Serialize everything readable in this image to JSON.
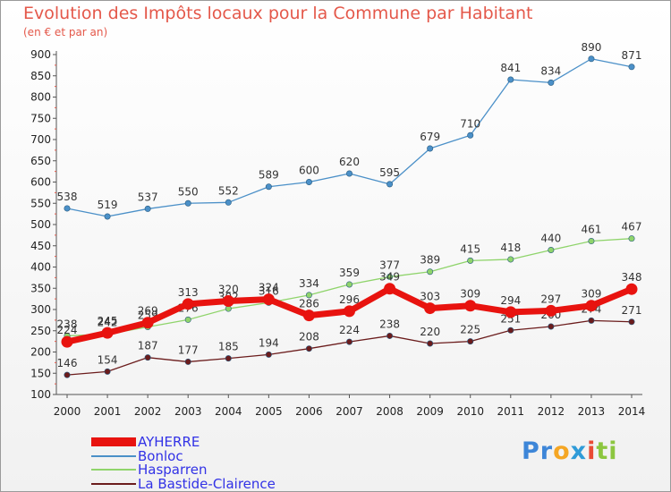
{
  "chart_data": {
    "type": "line",
    "title": "Evolution des Impôts locaux pour la Commune par Habitant",
    "subtitle": "(en € et par an)",
    "x": [
      "2000",
      "2001",
      "2002",
      "2003",
      "2004",
      "2005",
      "2006",
      "2007",
      "2008",
      "2009",
      "2010",
      "2011",
      "2012",
      "2013",
      "2014"
    ],
    "ylim": [
      100,
      900
    ],
    "yticks": [
      100,
      150,
      200,
      250,
      300,
      350,
      400,
      450,
      500,
      550,
      600,
      650,
      700,
      750,
      800,
      850,
      900
    ],
    "grid": false,
    "legend_position": "bottom-left",
    "series": [
      {
        "name": "AYHERRE",
        "color": "#e8130f",
        "values": [
          224,
          245,
          269,
          313,
          320,
          324,
          286,
          296,
          349,
          303,
          309,
          294,
          297,
          309,
          348
        ]
      },
      {
        "name": "Bonloc",
        "color": "#4b90c8",
        "values": [
          538,
          519,
          537,
          550,
          552,
          589,
          600,
          620,
          595,
          679,
          710,
          841,
          834,
          890,
          871
        ]
      },
      {
        "name": "Hasparren",
        "color": "#8fd46b",
        "values": [
          238,
          242,
          259,
          276,
          302,
          316,
          334,
          359,
          377,
          389,
          415,
          418,
          440,
          461,
          467
        ]
      },
      {
        "name": "La Bastide-Clairence",
        "color": "#6b1c1c",
        "values": [
          146,
          154,
          187,
          177,
          185,
          194,
          208,
          224,
          238,
          220,
          225,
          251,
          260,
          274,
          271
        ]
      }
    ]
  },
  "logo": {
    "p1": "Pr",
    "p2": "o",
    "p3": "x",
    "p4": "i",
    "p5": "ti"
  }
}
